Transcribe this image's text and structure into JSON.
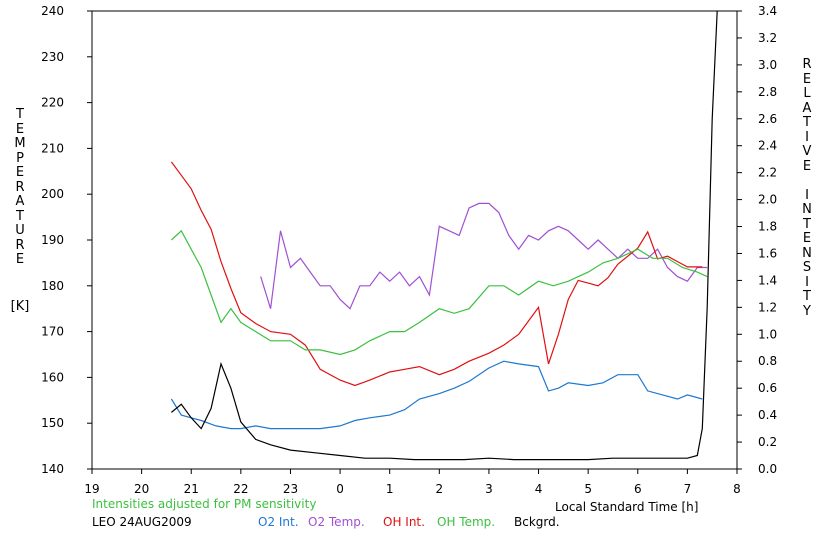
{
  "chart_data": {
    "type": "line",
    "ylabel_left": "TEMPERATURE",
    "ylabel_left_unit": "[K]",
    "ylabel_right": "RELATIVE INTENSITY",
    "xlabel": "Local Standard Time [h]",
    "note": "Intensities adjusted for PM sensitivity",
    "station_date": "LEO 24AUG2009",
    "x_ticks": [
      "19",
      "20",
      "21",
      "22",
      "23",
      "0",
      "1",
      "2",
      "3",
      "4",
      "5",
      "6",
      "7",
      "8"
    ],
    "x_range": [
      19,
      32
    ],
    "y_left_range": [
      140,
      240
    ],
    "y_left_ticks": [
      140,
      150,
      160,
      170,
      180,
      190,
      200,
      210,
      220,
      230,
      240
    ],
    "y_right_range": [
      0.0,
      3.4
    ],
    "y_right_ticks": [
      "0.0",
      "0.2",
      "0.4",
      "0.6",
      "0.8",
      "1.0",
      "1.2",
      "1.4",
      "1.6",
      "1.8",
      "2.0",
      "2.2",
      "2.4",
      "2.6",
      "2.8",
      "3.0",
      "3.2",
      "3.4"
    ],
    "grid": false,
    "legend_placement": "bottom",
    "series": [
      {
        "name": "O2 Int.",
        "color": "#1e78d0",
        "axis": "right",
        "x": [
          20.6,
          20.8,
          21.0,
          21.2,
          21.5,
          21.8,
          22.0,
          22.3,
          22.6,
          23.0,
          23.3,
          23.6,
          24.0,
          24.3,
          24.6,
          25.0,
          25.3,
          25.6,
          26.0,
          26.3,
          26.6,
          27.0,
          27.3,
          27.6,
          28.0,
          28.2,
          28.4,
          28.6,
          29.0,
          29.3,
          29.6,
          30.0,
          30.2,
          30.5,
          30.8,
          31.0,
          31.3
        ],
        "y": [
          0.52,
          0.4,
          0.38,
          0.36,
          0.32,
          0.3,
          0.3,
          0.32,
          0.3,
          0.3,
          0.3,
          0.3,
          0.32,
          0.36,
          0.38,
          0.4,
          0.44,
          0.52,
          0.56,
          0.6,
          0.65,
          0.75,
          0.8,
          0.78,
          0.76,
          0.58,
          0.6,
          0.64,
          0.62,
          0.64,
          0.7,
          0.7,
          0.58,
          0.55,
          0.52,
          0.55,
          0.52
        ]
      },
      {
        "name": "O2 Temp.",
        "color": "#a050d0",
        "axis": "left",
        "x": [
          22.4,
          22.6,
          22.8,
          23.0,
          23.2,
          23.4,
          23.6,
          23.8,
          24.0,
          24.2,
          24.4,
          24.6,
          24.8,
          25.0,
          25.2,
          25.4,
          25.6,
          25.8,
          26.0,
          26.2,
          26.4,
          26.6,
          26.8,
          27.0,
          27.2,
          27.4,
          27.6,
          27.8,
          28.0,
          28.2,
          28.4,
          28.6,
          28.8,
          29.0,
          29.2,
          29.4,
          29.6,
          29.8,
          30.0,
          30.2,
          30.4,
          30.6,
          30.8,
          31.0,
          31.2,
          31.4
        ],
        "y": [
          182,
          175,
          192,
          184,
          186,
          183,
          180,
          180,
          177,
          175,
          180,
          180,
          183,
          181,
          183,
          180,
          182,
          178,
          193,
          192,
          191,
          197,
          198,
          198,
          196,
          191,
          188,
          191,
          190,
          192,
          193,
          192,
          190,
          188,
          190,
          188,
          186,
          188,
          186,
          186,
          188,
          184,
          182,
          181,
          184,
          184
        ]
      },
      {
        "name": "OH Int.",
        "color": "#e01010",
        "axis": "right",
        "x": [
          20.6,
          20.8,
          21.0,
          21.2,
          21.4,
          21.6,
          21.8,
          22.0,
          22.3,
          22.6,
          23.0,
          23.3,
          23.6,
          24.0,
          24.3,
          24.6,
          25.0,
          25.3,
          25.6,
          26.0,
          26.3,
          26.6,
          27.0,
          27.3,
          27.6,
          28.0,
          28.2,
          28.4,
          28.6,
          28.8,
          29.0,
          29.2,
          29.4,
          29.6,
          30.0,
          30.2,
          30.4,
          30.6,
          30.8,
          31.0,
          31.3
        ],
        "y": [
          2.28,
          2.18,
          2.08,
          1.92,
          1.78,
          1.54,
          1.34,
          1.16,
          1.08,
          1.02,
          1.0,
          0.92,
          0.74,
          0.66,
          0.62,
          0.66,
          0.72,
          0.74,
          0.76,
          0.7,
          0.74,
          0.8,
          0.86,
          0.92,
          1.0,
          1.2,
          0.78,
          1.0,
          1.26,
          1.4,
          1.38,
          1.36,
          1.42,
          1.52,
          1.64,
          1.76,
          1.56,
          1.58,
          1.54,
          1.5,
          1.5
        ]
      },
      {
        "name": "OH Temp.",
        "color": "#3cc040",
        "axis": "left",
        "x": [
          20.6,
          20.8,
          21.0,
          21.2,
          21.4,
          21.6,
          21.8,
          22.0,
          22.3,
          22.6,
          23.0,
          23.3,
          23.6,
          24.0,
          24.3,
          24.6,
          25.0,
          25.3,
          25.6,
          26.0,
          26.3,
          26.6,
          27.0,
          27.3,
          27.6,
          28.0,
          28.3,
          28.6,
          29.0,
          29.3,
          29.6,
          30.0,
          30.3,
          30.6,
          30.9,
          31.2,
          31.4
        ],
        "y": [
          190,
          192,
          188,
          184,
          178,
          172,
          175,
          172,
          170,
          168,
          168,
          166,
          166,
          165,
          166,
          168,
          170,
          170,
          172,
          175,
          174,
          175,
          180,
          180,
          178,
          181,
          180,
          181,
          183,
          185,
          186,
          188,
          186,
          186,
          184,
          183,
          182
        ]
      },
      {
        "name": "Bckgrd.",
        "color": "#000000",
        "axis": "right",
        "x": [
          20.6,
          20.8,
          21.0,
          21.2,
          21.4,
          21.6,
          21.8,
          22.0,
          22.3,
          22.6,
          23.0,
          23.5,
          24.0,
          24.5,
          25.0,
          25.5,
          26.0,
          26.5,
          27.0,
          27.5,
          28.0,
          28.5,
          29.0,
          29.5,
          30.0,
          30.5,
          31.0,
          31.2,
          31.3,
          31.4,
          31.5,
          31.6
        ],
        "y": [
          0.42,
          0.48,
          0.38,
          0.3,
          0.45,
          0.78,
          0.6,
          0.35,
          0.22,
          0.18,
          0.14,
          0.12,
          0.1,
          0.08,
          0.08,
          0.07,
          0.07,
          0.07,
          0.08,
          0.07,
          0.07,
          0.07,
          0.07,
          0.08,
          0.08,
          0.08,
          0.08,
          0.1,
          0.3,
          1.2,
          2.6,
          3.4
        ]
      }
    ]
  }
}
